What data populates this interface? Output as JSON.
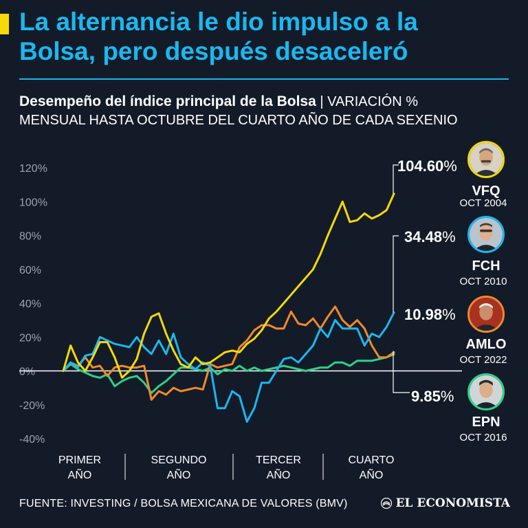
{
  "headline": {
    "line1": "La alternancia le dio impulso a la",
    "line2": "Bolsa, pero después desaceleró"
  },
  "subtitle": {
    "bold": "Desempeño del índice principal de la Bolsa",
    "separator": " | ",
    "rest_line1": "VARIACIÓN %",
    "rest_line2": "MENSUAL HASTA OCTUBRE DEL CUARTO AÑO DE CADA SEXENIO"
  },
  "colors": {
    "background": "#141b28",
    "accent": "#f5d90a",
    "headline": "#1ab8f0",
    "vfq": "#f5d90a",
    "fch": "#1ab8f0",
    "amlo": "#f08a2c",
    "epn": "#2ed18a"
  },
  "chart_data": {
    "type": "line",
    "title": "Desempeño del índice principal de la Bolsa",
    "xlabel": "",
    "ylabel": "VARIACIÓN %",
    "ylim": [
      -40,
      120
    ],
    "yticks": [
      -40,
      -20,
      0,
      20,
      40,
      60,
      80,
      100,
      120
    ],
    "ytick_labels": [
      "-40%",
      "-20%",
      "0%",
      "20%",
      "40%",
      "60%",
      "80%",
      "100%",
      "120%"
    ],
    "grid": false,
    "x_months": 46,
    "periods": [
      {
        "line1": "PRIMER",
        "line2": "AÑO"
      },
      {
        "line1": "SEGUNDO",
        "line2": "AÑO"
      },
      {
        "line1": "TERCER",
        "line2": "AÑO"
      },
      {
        "line1": "CUARTO",
        "line2": "AÑO"
      }
    ],
    "series": [
      {
        "key": "vfq",
        "name": "VFQ",
        "date": "OCT 2004",
        "final_label": "104.60%",
        "values": [
          0,
          15,
          5,
          0,
          8,
          17,
          17,
          8,
          -4,
          0,
          7,
          22,
          32,
          34,
          22,
          12,
          4,
          2,
          8,
          4,
          5,
          8,
          11,
          12,
          11,
          16,
          19,
          24,
          31,
          35,
          40,
          45,
          50,
          55,
          60,
          69,
          80,
          90,
          100,
          88,
          89,
          93,
          90,
          92,
          95,
          104.6
        ]
      },
      {
        "key": "fch",
        "name": "FCH",
        "date": "OCT 2010",
        "final_label": "34.48%",
        "values": [
          0,
          5,
          2,
          9,
          10,
          20,
          18,
          16,
          15,
          14,
          20,
          14,
          10,
          18,
          10,
          22,
          8,
          4,
          1,
          5,
          3,
          -22,
          -22,
          -12,
          -15,
          -30,
          -22,
          -7,
          -7,
          0,
          7,
          8,
          5,
          10,
          15,
          25,
          20,
          30,
          25,
          25,
          25,
          15,
          22,
          20,
          26,
          34.48
        ]
      },
      {
        "key": "amlo",
        "name": "AMLO",
        "date": "OCT 2022",
        "final_label": "10.98%",
        "values": [
          0,
          5,
          3,
          8,
          2,
          3,
          -3,
          2,
          3,
          2,
          2,
          3,
          -17,
          -12,
          -14,
          -10,
          -12,
          -11,
          -10,
          -11,
          4,
          2,
          3,
          4,
          14,
          18,
          24,
          27,
          27,
          25,
          25,
          35,
          28,
          27,
          31,
          25,
          32,
          38,
          30,
          26,
          30,
          25,
          15,
          8,
          8,
          10.98
        ]
      },
      {
        "key": "epn",
        "name": "EPN",
        "date": "OCT 2016",
        "final_label": "9.85%",
        "values": [
          0,
          4,
          1,
          -1,
          -3,
          -4,
          -2,
          -9,
          -6,
          -4,
          -3,
          -7,
          -13,
          -9,
          -6,
          -2,
          2,
          2,
          1,
          0,
          2,
          -2,
          1,
          0,
          3,
          0,
          2,
          0,
          1,
          2,
          3,
          2,
          1,
          0,
          1,
          2,
          2,
          5,
          5,
          3,
          6,
          6,
          6,
          7,
          8,
          9.85
        ]
      }
    ]
  },
  "footer": {
    "source": "FUENTE: INVESTING / BOLSA MEXICANA DE VALORES (BMV)",
    "brand": "EL ECONOMISTA"
  }
}
